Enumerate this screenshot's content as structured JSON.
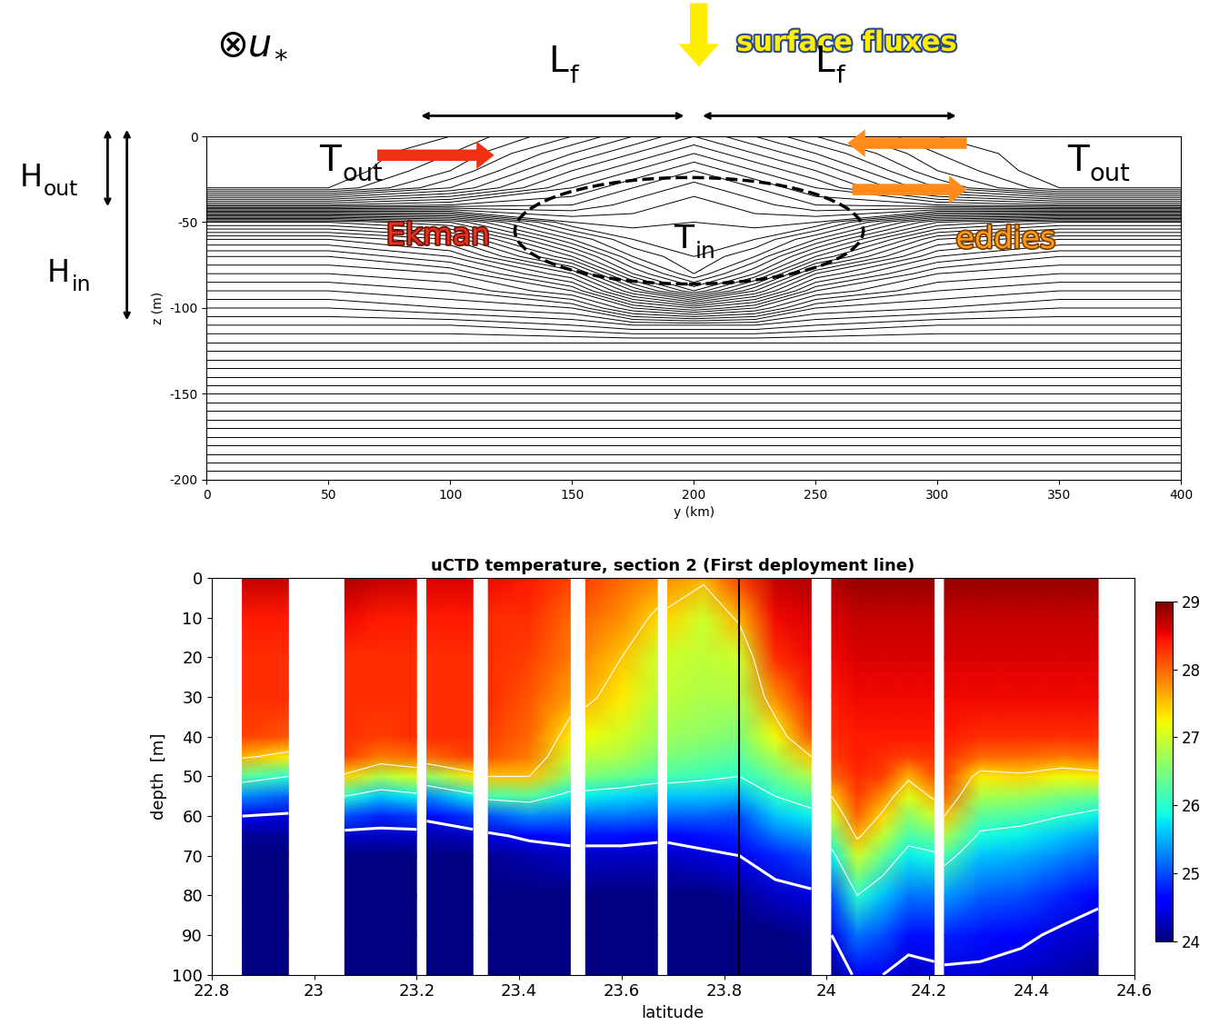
{
  "chart_data": [
    {
      "type": "contour",
      "xlabel": "y (km)",
      "ylabel": "z (m)",
      "xlim": [
        0,
        400
      ],
      "ylim": [
        -200,
        0
      ],
      "xticks": [
        0,
        50,
        100,
        150,
        200,
        250,
        300,
        350,
        400
      ],
      "yticks": [
        -200,
        -150,
        -100,
        -50,
        0
      ],
      "x": [
        0,
        50,
        100,
        150,
        175,
        200,
        225,
        250,
        300,
        350,
        400
      ],
      "y": [
        0,
        -10,
        -20,
        -30,
        -40,
        -50,
        -60,
        -70,
        -80,
        -90,
        -100,
        -110,
        -120,
        -140,
        -160,
        -180,
        -200
      ],
      "cells": [
        [
          28.0,
          28.0,
          28.0,
          27.9,
          27.0,
          25.6,
          25.1,
          24.8,
          24.6,
          24.4,
          24.2,
          24.0,
          23.8,
          23.4,
          23.0,
          22.6,
          22.2
        ],
        [
          28.0,
          28.0,
          28.0,
          27.9,
          27.0,
          25.6,
          25.1,
          24.8,
          24.6,
          24.4,
          24.2,
          24.0,
          23.8,
          23.4,
          23.0,
          22.6,
          22.2
        ],
        [
          27.9,
          27.8,
          27.7,
          27.5,
          26.9,
          25.8,
          25.3,
          25.0,
          24.7,
          24.5,
          24.3,
          24.0,
          23.8,
          23.4,
          23.0,
          22.6,
          22.2
        ],
        [
          27.6,
          27.4,
          27.2,
          27.0,
          26.8,
          26.5,
          26.1,
          25.7,
          25.2,
          24.8,
          24.4,
          24.1,
          23.8,
          23.4,
          23.0,
          22.6,
          22.2
        ],
        [
          27.4,
          27.2,
          27.0,
          26.8,
          26.65,
          26.55,
          26.4,
          26.2,
          25.9,
          25.4,
          24.8,
          24.2,
          23.8,
          23.4,
          23.0,
          22.6,
          22.2
        ],
        [
          27.2,
          27.0,
          26.8,
          26.65,
          26.55,
          26.5,
          26.45,
          26.4,
          26.3,
          25.9,
          25.0,
          24.2,
          23.8,
          23.4,
          23.0,
          22.6,
          22.2
        ],
        [
          27.4,
          27.2,
          27.0,
          26.8,
          26.65,
          26.55,
          26.4,
          26.2,
          25.9,
          25.4,
          24.8,
          24.2,
          23.8,
          23.4,
          23.0,
          22.6,
          22.2
        ],
        [
          27.6,
          27.4,
          27.2,
          27.0,
          26.8,
          26.5,
          26.1,
          25.7,
          25.2,
          24.8,
          24.4,
          24.1,
          23.8,
          23.4,
          23.0,
          22.6,
          22.2
        ],
        [
          27.9,
          27.8,
          27.7,
          27.5,
          26.9,
          25.8,
          25.3,
          25.0,
          24.7,
          24.5,
          24.3,
          24.0,
          23.8,
          23.4,
          23.0,
          22.6,
          22.2
        ],
        [
          28.0,
          28.0,
          28.0,
          27.9,
          27.0,
          25.6,
          25.1,
          24.8,
          24.6,
          24.4,
          24.2,
          24.0,
          23.8,
          23.4,
          23.0,
          22.6,
          22.2
        ],
        [
          28.0,
          28.0,
          28.0,
          27.9,
          27.0,
          25.6,
          25.1,
          24.8,
          24.6,
          24.4,
          24.2,
          24.0,
          23.8,
          23.4,
          23.0,
          22.6,
          22.2
        ]
      ],
      "levels": [
        22.2,
        22.3,
        22.4,
        22.5,
        22.6,
        22.7,
        22.8,
        22.9,
        23.0,
        23.1,
        23.2,
        23.3,
        23.4,
        23.5,
        23.6,
        23.7,
        23.8,
        23.9,
        24.0,
        24.1,
        24.2,
        24.3,
        24.4,
        24.5,
        24.6,
        24.7,
        24.8,
        24.9,
        25.0,
        25.1,
        25.2,
        25.3,
        25.4,
        25.5,
        25.6,
        25.7,
        25.8,
        25.9,
        26.0,
        26.1,
        26.2,
        26.3,
        26.4,
        26.5,
        26.6,
        26.7,
        26.8,
        26.9,
        27.0,
        27.1,
        27.2,
        27.3,
        27.4,
        27.5,
        27.6,
        27.7,
        27.8,
        27.9
      ],
      "annotations": {
        "velocity": {
          "text": "⊗u",
          "sub": "*"
        },
        "surface_fluxes": "surface fluxes",
        "front_width": {
          "text": "L",
          "sub": "f"
        },
        "depth_out": {
          "text": "H",
          "sub": "out"
        },
        "depth_in": {
          "text": "H",
          "sub": "in"
        },
        "temp_out": {
          "text": "T",
          "sub": "out"
        },
        "temp_in": {
          "text": "T",
          "sub": "in"
        },
        "ekman": "Ekman",
        "eddies": "eddies"
      }
    },
    {
      "type": "heatmap",
      "title": "uCTD temperature, section 2 (First deployment line)",
      "xlabel": "latitude",
      "ylabel": "depth  [m]",
      "xlim": [
        22.8,
        24.6
      ],
      "ylim": [
        100,
        0
      ],
      "xticks": [
        22.8,
        23,
        23.2,
        23.4,
        23.6,
        23.8,
        24,
        24.2,
        24.4,
        24.6
      ],
      "yticks": [
        0,
        10,
        20,
        30,
        40,
        50,
        60,
        70,
        80,
        90,
        100
      ],
      "depths": [
        0,
        10,
        20,
        30,
        40,
        45,
        50,
        55,
        60,
        65,
        70,
        80,
        90,
        100
      ],
      "sections": [
        {
          "x": [
            22.86,
            22.95
          ],
          "cells": [
            [
              28.7,
              28.4,
              28.3,
              28.3,
              28.2,
              27.6,
              26.3,
              25.3,
              24.5,
              24.1,
              23.9,
              23.7,
              23.6,
              23.5
            ],
            [
              28.7,
              28.4,
              28.3,
              28.3,
              28.1,
              27.3,
              26.0,
              25.1,
              24.4,
              24.1,
              23.9,
              23.7,
              23.6,
              23.5
            ]
          ]
        },
        {
          "x": [
            23.06,
            23.13,
            23.2
          ],
          "cells": [
            [
              28.8,
              28.5,
              28.3,
              28.3,
              28.3,
              28.2,
              27.4,
              26.0,
              25.0,
              24.3,
              24.0,
              23.8,
              23.6,
              23.5
            ],
            [
              28.7,
              28.4,
              28.3,
              28.3,
              28.2,
              27.9,
              26.8,
              25.6,
              24.8,
              24.3,
              24.0,
              23.8,
              23.6,
              23.5
            ],
            [
              28.7,
              28.4,
              28.3,
              28.3,
              28.3,
              28.0,
              27.1,
              25.8,
              24.9,
              24.3,
              24.0,
              23.8,
              23.6,
              23.5
            ]
          ]
        },
        {
          "x": [
            23.22,
            23.31
          ],
          "cells": [
            [
              28.6,
              28.4,
              28.3,
              28.3,
              28.3,
              28.0,
              26.6,
              25.3,
              24.6,
              24.2,
              24.0,
              23.8,
              23.6,
              23.5
            ],
            [
              28.6,
              28.4,
              28.3,
              28.3,
              28.3,
              28.2,
              27.3,
              25.8,
              24.9,
              24.3,
              24.0,
              23.8,
              23.6,
              23.5
            ]
          ]
        },
        {
          "x": [
            23.34,
            23.42,
            23.5
          ],
          "cells": [
            [
              28.5,
              28.3,
              28.3,
              28.3,
              28.2,
              28.1,
              27.5,
              26.2,
              25.0,
              24.4,
              24.1,
              23.8,
              23.6,
              23.5
            ],
            [
              28.4,
              28.3,
              28.2,
              28.1,
              28.0,
              27.9,
              27.5,
              26.3,
              25.3,
              24.6,
              24.2,
              23.9,
              23.7,
              23.5
            ],
            [
              28.2,
              28.0,
              27.9,
              27.7,
              27.3,
              27.0,
              26.6,
              25.8,
              25.2,
              24.7,
              24.3,
              23.9,
              23.7,
              23.5
            ]
          ]
        },
        {
          "x": [
            23.53,
            23.6,
            23.67
          ],
          "cells": [
            [
              28.2,
              28.0,
              27.8,
              27.6,
              27.2,
              26.9,
              26.5,
              25.8,
              25.2,
              24.7,
              24.3,
              23.9,
              23.7,
              23.5
            ],
            [
              28.0,
              27.8,
              27.5,
              27.3,
              27.0,
              26.8,
              26.4,
              25.7,
              25.2,
              24.7,
              24.3,
              23.9,
              23.7,
              23.5
            ],
            [
              27.8,
              27.4,
              27.0,
              26.9,
              26.7,
              26.5,
              26.2,
              25.6,
              25.1,
              24.6,
              24.3,
              23.9,
              23.7,
              23.5
            ]
          ]
        },
        {
          "x": [
            23.69,
            23.76,
            23.83,
            23.9,
            23.97
          ],
          "cells": [
            [
              27.8,
              27.4,
              27.0,
              26.9,
              26.7,
              26.5,
              26.2,
              25.6,
              25.1,
              24.6,
              24.3,
              23.9,
              23.7,
              23.5
            ],
            [
              27.6,
              27.0,
              26.9,
              26.8,
              26.6,
              26.4,
              26.1,
              25.6,
              25.1,
              24.7,
              24.4,
              24.0,
              23.8,
              23.6
            ],
            [
              28.2,
              27.6,
              27.0,
              26.8,
              26.5,
              26.3,
              26.0,
              25.5,
              25.0,
              24.8,
              24.5,
              24.1,
              23.9,
              23.7
            ],
            [
              28.7,
              28.5,
              28.3,
              27.8,
              27.2,
              26.8,
              26.4,
              26.0,
              25.6,
              25.2,
              24.8,
              24.3,
              24.0,
              23.8
            ],
            [
              28.8,
              28.6,
              28.5,
              28.4,
              28.1,
              27.5,
              26.8,
              26.3,
              25.8,
              25.4,
              25.0,
              24.4,
              24.1,
              23.9
            ]
          ]
        },
        {
          "x": [
            24.01,
            24.06,
            24.11,
            24.16,
            24.21
          ],
          "cells": [
            [
              28.8,
              28.6,
              28.5,
              28.4,
              28.3,
              28.2,
              28.0,
              27.5,
              27.0,
              26.4,
              25.8,
              25.0,
              24.5,
              24.1
            ],
            [
              28.9,
              28.7,
              28.6,
              28.5,
              28.4,
              28.4,
              28.3,
              28.2,
              28.0,
              27.6,
              27.0,
              26.0,
              25.2,
              24.6
            ],
            [
              28.9,
              28.7,
              28.6,
              28.5,
              28.4,
              28.3,
              28.2,
              27.8,
              27.4,
              26.9,
              26.4,
              25.6,
              25.0,
              24.5
            ],
            [
              28.9,
              28.7,
              28.6,
              28.5,
              28.4,
              28.2,
              27.6,
              27.1,
              26.6,
              26.2,
              25.8,
              25.2,
              24.7,
              24.3
            ],
            [
              28.9,
              28.7,
              28.6,
              28.5,
              28.4,
              28.3,
              28.1,
              27.6,
              27.0,
              26.4,
              25.9,
              25.2,
              24.7,
              24.4
            ]
          ]
        },
        {
          "x": [
            24.23,
            24.3,
            24.38,
            24.46,
            24.53
          ],
          "cells": [
            [
              28.9,
              28.7,
              28.6,
              28.5,
              28.4,
              28.3,
              28.2,
              28.0,
              27.5,
              26.8,
              26.2,
              25.4,
              24.8,
              24.4
            ],
            [
              28.9,
              28.7,
              28.6,
              28.5,
              28.3,
              28.0,
              27.3,
              26.8,
              26.3,
              25.9,
              25.6,
              25.1,
              24.7,
              24.4
            ],
            [
              28.9,
              28.7,
              28.6,
              28.5,
              28.3,
              28.0,
              27.4,
              26.7,
              26.2,
              25.8,
              25.5,
              25.0,
              24.6,
              24.3
            ],
            [
              28.9,
              28.7,
              28.6,
              28.5,
              28.3,
              27.9,
              27.2,
              26.5,
              26.0,
              25.6,
              25.3,
              24.8,
              24.4,
              24.2
            ],
            [
              28.9,
              28.7,
              28.6,
              28.5,
              28.3,
              28.0,
              27.3,
              26.4,
              25.8,
              25.4,
              25.1,
              24.6,
              24.3,
              24.1
            ]
          ]
        }
      ],
      "contour_levels": [
        24.5,
        26,
        27.5
      ],
      "vertical_line": 23.83,
      "colorbar": {
        "range": [
          24,
          29
        ],
        "ticks": [
          24,
          25,
          26,
          27,
          28,
          29
        ]
      }
    }
  ]
}
